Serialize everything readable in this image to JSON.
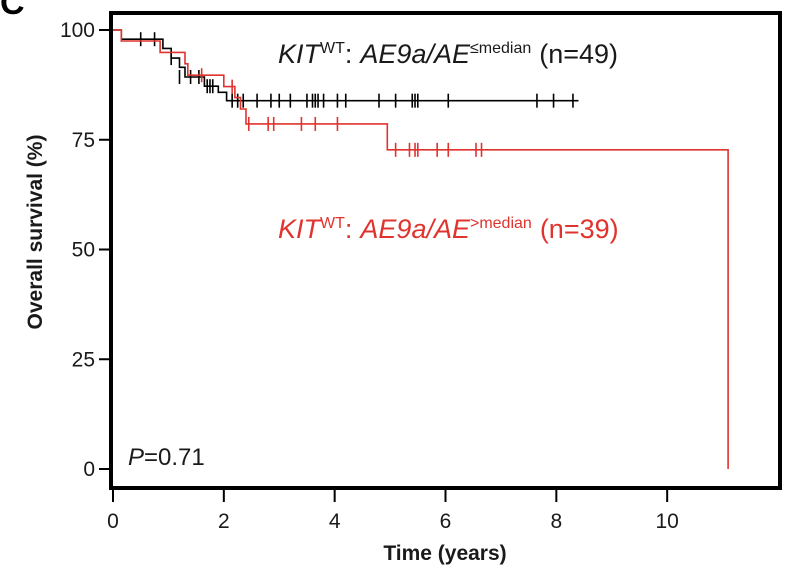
{
  "panel_label": "C",
  "chart_data": {
    "type": "line",
    "subtype": "kaplan-meier",
    "xlabel": "Time (years)",
    "ylabel": "Overall survival (%)",
    "xlim": [
      0,
      12
    ],
    "ylim": [
      0,
      100
    ],
    "xticks": [
      0,
      2,
      4,
      6,
      8,
      10
    ],
    "yticks": [
      0,
      25,
      50,
      75,
      100
    ],
    "grid": false,
    "legend_placement": "inline annotations",
    "pvalue": {
      "symbol": "P",
      "text": "=0.71"
    },
    "series": [
      {
        "annotation": {
          "gene": "KIT",
          "gene_sup": "WT",
          "sep": ":",
          "ratio": "AE9a/AE",
          "ratio_sup": "≤median",
          "n": "(n=49)"
        },
        "color": "#000000",
        "steps": [
          [
            0,
            100
          ],
          [
            0.15,
            100
          ],
          [
            0.15,
            97.9
          ],
          [
            0.9,
            97.9
          ],
          [
            0.9,
            95.8
          ],
          [
            1.05,
            95.8
          ],
          [
            1.05,
            93.6
          ],
          [
            1.2,
            93.6
          ],
          [
            1.2,
            91.5
          ],
          [
            1.3,
            91.5
          ],
          [
            1.3,
            89.3
          ],
          [
            1.65,
            89.3
          ],
          [
            1.65,
            87.2
          ],
          [
            1.9,
            87.2
          ],
          [
            1.9,
            85.8
          ],
          [
            2.05,
            85.8
          ],
          [
            2.05,
            83.9
          ],
          [
            8.4,
            83.9
          ]
        ],
        "censored": [
          [
            0.5,
            97.9
          ],
          [
            0.75,
            97.9
          ],
          [
            1.05,
            93.6
          ],
          [
            1.2,
            89.3
          ],
          [
            1.4,
            89.3
          ],
          [
            1.55,
            89.3
          ],
          [
            1.7,
            87.2
          ],
          [
            1.75,
            87.2
          ],
          [
            1.8,
            87.2
          ],
          [
            2.15,
            83.9
          ],
          [
            2.25,
            83.9
          ],
          [
            2.35,
            83.9
          ],
          [
            2.6,
            83.9
          ],
          [
            2.85,
            83.9
          ],
          [
            3.0,
            83.9
          ],
          [
            3.2,
            83.9
          ],
          [
            3.5,
            83.9
          ],
          [
            3.6,
            83.9
          ],
          [
            3.65,
            83.9
          ],
          [
            3.7,
            83.9
          ],
          [
            3.8,
            83.9
          ],
          [
            4.05,
            83.9
          ],
          [
            4.2,
            83.9
          ],
          [
            4.8,
            83.9
          ],
          [
            5.1,
            83.9
          ],
          [
            5.4,
            83.9
          ],
          [
            5.45,
            83.9
          ],
          [
            5.5,
            83.9
          ],
          [
            6.05,
            83.9
          ],
          [
            7.65,
            83.9
          ],
          [
            7.95,
            83.9
          ],
          [
            8.3,
            83.9
          ]
        ]
      },
      {
        "annotation": {
          "gene": "KIT",
          "gene_sup": "WT",
          "sep": ":",
          "ratio": "AE9a/AE",
          "ratio_sup": ">median",
          "n": "(n=39)"
        },
        "color": "#e0332e",
        "steps": [
          [
            0,
            100
          ],
          [
            0.15,
            100
          ],
          [
            0.15,
            97.5
          ],
          [
            0.85,
            97.5
          ],
          [
            0.85,
            94.9
          ],
          [
            1.3,
            94.9
          ],
          [
            1.3,
            92.3
          ],
          [
            1.35,
            92.3
          ],
          [
            1.35,
            89.7
          ],
          [
            2.0,
            89.7
          ],
          [
            2.0,
            87.1
          ],
          [
            2.2,
            87.1
          ],
          [
            2.2,
            84.6
          ],
          [
            2.3,
            84.6
          ],
          [
            2.3,
            82.0
          ],
          [
            2.4,
            82.0
          ],
          [
            2.4,
            78.6
          ],
          [
            4.95,
            78.6
          ],
          [
            4.95,
            72.7
          ],
          [
            11.1,
            72.7
          ],
          [
            11.1,
            0
          ]
        ],
        "censored": [
          [
            1.6,
            89.7
          ],
          [
            2.15,
            87.1
          ],
          [
            2.45,
            78.6
          ],
          [
            2.8,
            78.6
          ],
          [
            2.9,
            78.6
          ],
          [
            3.4,
            78.6
          ],
          [
            3.65,
            78.6
          ],
          [
            4.05,
            78.6
          ],
          [
            5.1,
            72.7
          ],
          [
            5.35,
            72.7
          ],
          [
            5.45,
            72.7
          ],
          [
            5.5,
            72.7
          ],
          [
            5.85,
            72.7
          ],
          [
            6.05,
            72.7
          ],
          [
            6.55,
            72.7
          ],
          [
            6.65,
            72.7
          ]
        ]
      }
    ]
  }
}
